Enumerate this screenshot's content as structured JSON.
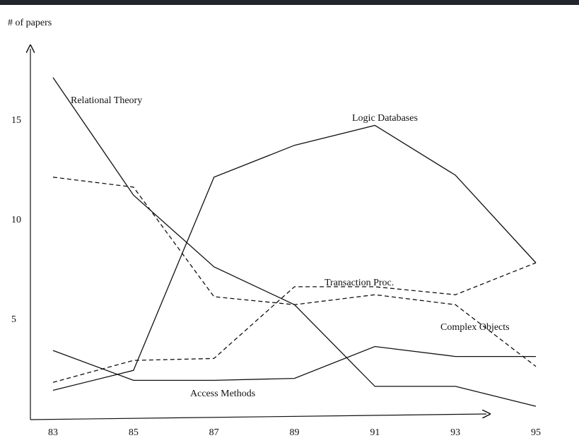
{
  "chart_data": {
    "type": "line",
    "ylabel": "# of papers",
    "xlabel": "",
    "x": [
      83,
      85,
      87,
      89,
      91,
      93,
      95
    ],
    "x_tick_labels": [
      "83",
      "85",
      "87",
      "89",
      "91",
      "93",
      "95"
    ],
    "y_tick_values": [
      5,
      10,
      15
    ],
    "y_tick_labels": [
      "5",
      "10",
      "15"
    ],
    "xlim": [
      83,
      95
    ],
    "ylim": [
      0,
      18.5
    ],
    "grid": false,
    "legend": "none (series labeled inline)",
    "series": [
      {
        "name": "Relational Theory",
        "style": "solid",
        "values": [
          17.1,
          11.2,
          7.6,
          5.7,
          1.6,
          1.6,
          0.6
        ]
      },
      {
        "name": "Logic Databases",
        "style": "solid",
        "values": [
          1.4,
          2.4,
          12.1,
          13.7,
          14.7,
          12.2,
          7.8
        ]
      },
      {
        "name": "Complex Objects",
        "style": "dashed",
        "values": [
          12.1,
          11.6,
          6.1,
          5.7,
          6.2,
          5.7,
          2.6
        ]
      },
      {
        "name": "Transaction Proc.",
        "style": "dashed",
        "values": [
          1.8,
          2.9,
          3.0,
          6.6,
          6.6,
          6.2,
          7.8
        ]
      },
      {
        "name": "Access Methods",
        "style": "solid",
        "values": [
          3.4,
          1.9,
          1.9,
          2.0,
          3.6,
          3.1,
          3.1
        ]
      }
    ]
  },
  "colors": {
    "line": "#111111",
    "background": "#ffffff",
    "frame": "#2a2d33"
  }
}
